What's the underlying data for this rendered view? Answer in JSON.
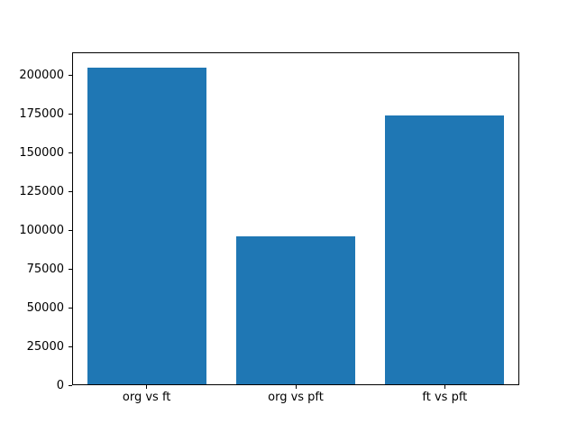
{
  "chart_data": {
    "type": "bar",
    "title": "",
    "xlabel": "",
    "ylabel": "",
    "categories": [
      "org vs ft",
      "org vs pft",
      "ft vs pft"
    ],
    "values": [
      204500,
      95700,
      173300
    ],
    "yticks": [
      0,
      25000,
      50000,
      75000,
      100000,
      125000,
      150000,
      175000,
      200000
    ],
    "ylim": [
      0,
      214700
    ],
    "bar_color": "#1f77b4",
    "axis_color": "#000000",
    "background_color": "#ffffff",
    "bar_width_fraction": 0.8,
    "grid": false,
    "legend": "none"
  }
}
